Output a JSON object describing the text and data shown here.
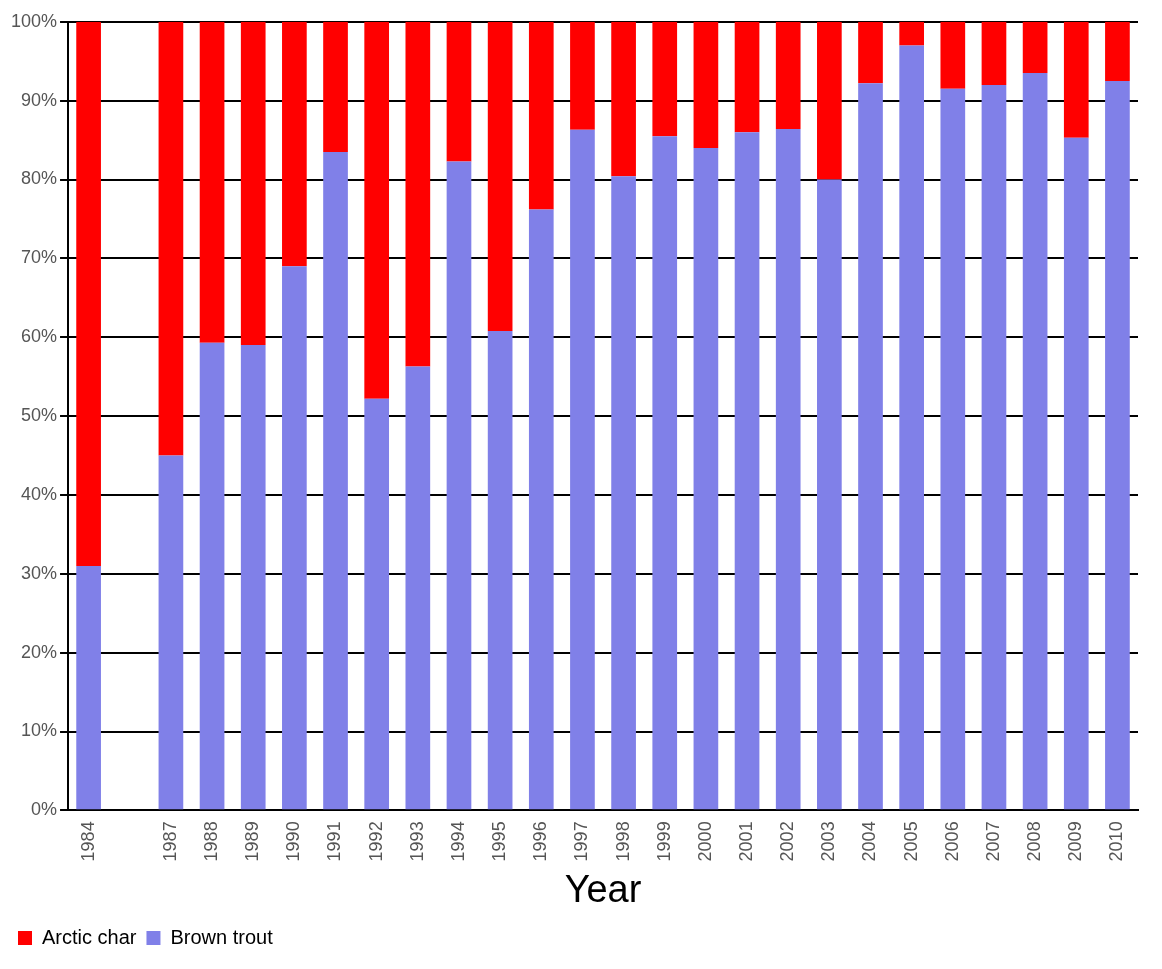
{
  "chart_data": {
    "type": "bar",
    "stacked": true,
    "xlabel": "Year",
    "categories": [
      "1984",
      null,
      "1987",
      "1988",
      "1989",
      "1990",
      "1991",
      "1992",
      "1993",
      "1994",
      "1995",
      "1996",
      "1997",
      "1998",
      "1999",
      "2000",
      "2001",
      "2002",
      "2003",
      "2004",
      "2005",
      "2006",
      "2007",
      "2008",
      "2009",
      "2010"
    ],
    "series": [
      {
        "name": "Brown trout",
        "color": "#8080e8",
        "values": [
          31,
          null,
          45,
          59.3,
          59,
          69,
          83.5,
          52.2,
          56.3,
          82.3,
          60.8,
          76.2,
          86.3,
          80.4,
          85.5,
          84,
          86,
          86.4,
          80,
          92.2,
          97,
          91.5,
          92,
          93.5,
          85.3,
          92.5
        ]
      },
      {
        "name": "Arctic char",
        "color": "#ff0000",
        "values": [
          69,
          null,
          55,
          40.7,
          41,
          31,
          16.5,
          47.8,
          43.7,
          17.7,
          39.2,
          23.8,
          13.7,
          19.6,
          14.5,
          16,
          14,
          13.6,
          20,
          7.8,
          3,
          8.5,
          8,
          6.5,
          14.7,
          7.5
        ]
      }
    ],
    "ylim": [
      0,
      100
    ],
    "yticks": [
      {
        "value": 0,
        "label": "0%"
      },
      {
        "value": 10,
        "label": "10%"
      },
      {
        "value": 20,
        "label": "20%"
      },
      {
        "value": 30,
        "label": "30%"
      },
      {
        "value": 40,
        "label": "40%"
      },
      {
        "value": 50,
        "label": "50%"
      },
      {
        "value": 60,
        "label": "60%"
      },
      {
        "value": 70,
        "label": "70%"
      },
      {
        "value": 80,
        "label": "80%"
      },
      {
        "value": 90,
        "label": "90%"
      },
      {
        "value": 100,
        "label": "100%"
      }
    ],
    "grid": "y",
    "legend": "bottom left"
  }
}
